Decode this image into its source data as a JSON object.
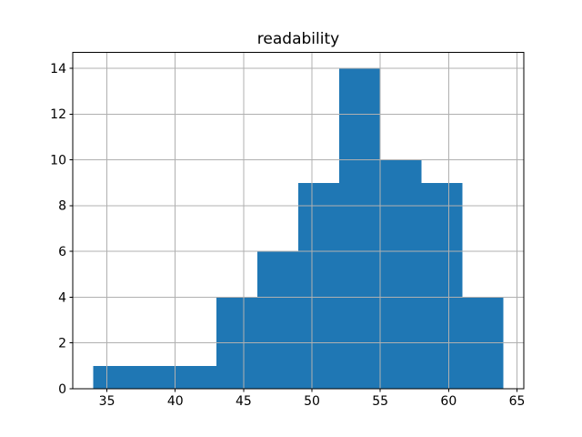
{
  "chart_data": {
    "type": "bar",
    "subtype": "histogram",
    "title": "readability",
    "xlabel": "",
    "ylabel": "",
    "bin_edges": [
      34,
      37,
      40,
      43,
      46,
      49,
      52,
      55,
      58,
      61,
      64
    ],
    "counts": [
      1,
      1,
      1,
      4,
      6,
      9,
      14,
      10,
      9,
      4
    ],
    "x_ticks": [
      35,
      40,
      45,
      50,
      55,
      60,
      65
    ],
    "y_ticks": [
      0,
      2,
      4,
      6,
      8,
      10,
      12,
      14
    ],
    "xlim": [
      32.5,
      65.5
    ],
    "ylim": [
      0,
      14.7
    ],
    "grid": true,
    "legend": false,
    "bar_color": "#1f77b4",
    "grid_color": "#b0b0b0",
    "spine_color": "#000000",
    "tick_color": "#000000",
    "background_color": "#ffffff"
  }
}
